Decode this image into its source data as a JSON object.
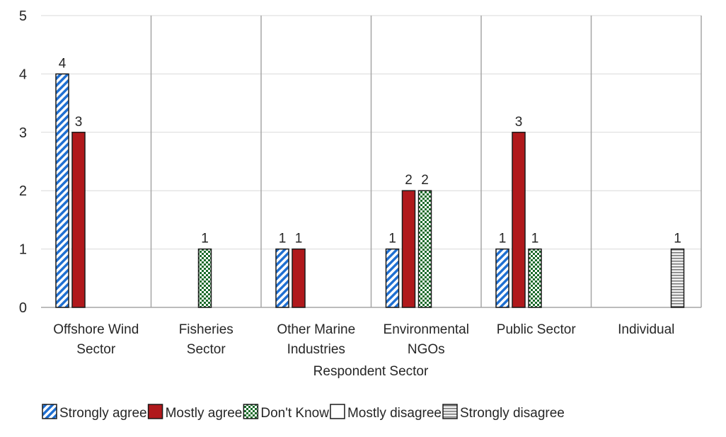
{
  "chart_data": {
    "type": "bar",
    "title": "",
    "xlabel": "Respondent Sector",
    "ylabel": "",
    "ylim": [
      0,
      5
    ],
    "yticks": [
      "0",
      "1",
      "2",
      "3",
      "4",
      "5"
    ],
    "grid": true,
    "legend_placement": "bottom",
    "categories": [
      [
        "Offshore Wind",
        "Sector"
      ],
      [
        "Fisheries",
        "Sector"
      ],
      [
        "Other Marine",
        "Industries"
      ],
      [
        "Environmental",
        "NGOs"
      ],
      [
        "Public Sector"
      ],
      [
        "Individual"
      ]
    ],
    "series": [
      {
        "name": "Strongly agree",
        "pattern": "diagonal-hatch",
        "color": "#1f6fd1",
        "values": [
          4,
          0,
          1,
          1,
          1,
          0
        ]
      },
      {
        "name": "Mostly agree",
        "pattern": "solid",
        "color": "#b0191c",
        "values": [
          3,
          0,
          1,
          2,
          3,
          0
        ]
      },
      {
        "name": "Don't Know",
        "pattern": "checker",
        "color": "#1a6b2a",
        "values": [
          0,
          1,
          0,
          2,
          1,
          0
        ]
      },
      {
        "name": "Mostly disagree",
        "pattern": "solid",
        "color": "#ffffff",
        "values": [
          0,
          0,
          0,
          0,
          0,
          0
        ]
      },
      {
        "name": "Strongly disagree",
        "pattern": "horizontal-lines",
        "color": "#9a9a9a",
        "values": [
          0,
          0,
          0,
          0,
          0,
          1
        ]
      }
    ]
  }
}
